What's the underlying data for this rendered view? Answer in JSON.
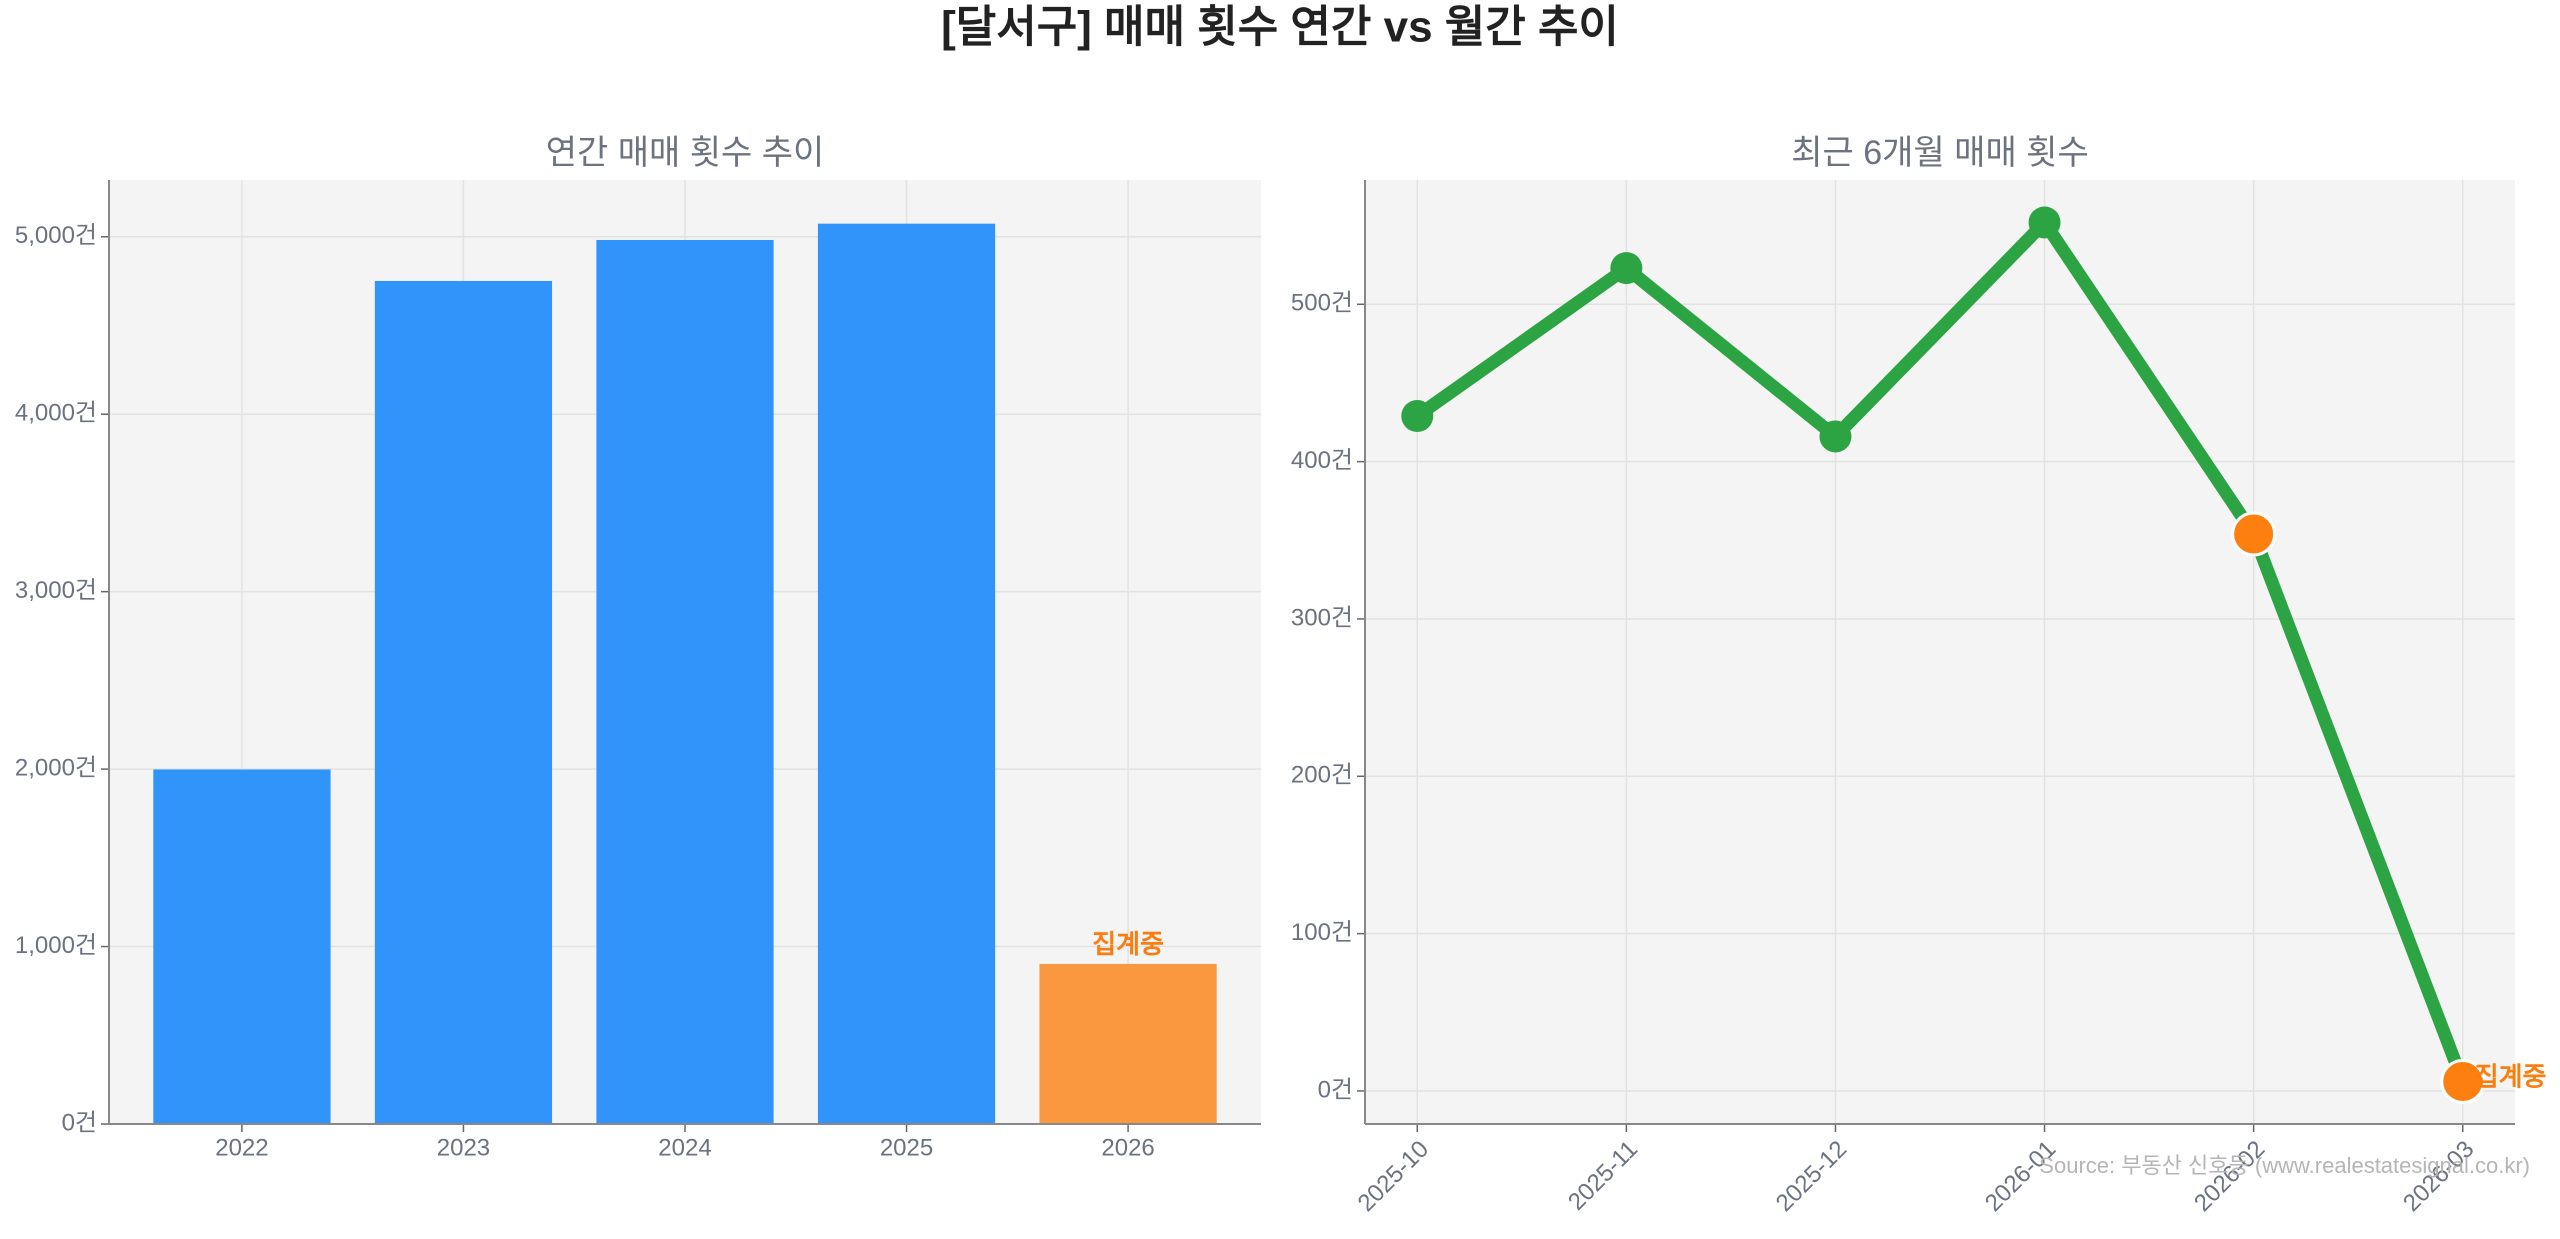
{
  "title": "[달서구] 매매 횟수 연간 vs 월간 추이",
  "source": "Source: 부동산 신호등 (www.realestatesignal.co.kr)",
  "chart_data": [
    {
      "type": "bar",
      "title": "연간 매매 횟수 추이",
      "categories": [
        "2022",
        "2023",
        "2024",
        "2025",
        "2026"
      ],
      "values": [
        1998,
        4751,
        4982,
        5074,
        902
      ],
      "colors": [
        "#3194fb",
        "#3194fb",
        "#3194fb",
        "#3194fb",
        "#fa983f"
      ],
      "ylim": [
        0,
        5320
      ],
      "yticks": [
        {
          "value": 0,
          "label": "0건"
        },
        {
          "value": 1000,
          "label": "1,000건"
        },
        {
          "value": 2000,
          "label": "2,000건"
        },
        {
          "value": 3000,
          "label": "3,000건"
        },
        {
          "value": 4000,
          "label": "4,000건"
        },
        {
          "value": 5000,
          "label": "5,000건"
        }
      ],
      "grid": true,
      "annotations": [
        {
          "text": "집계중",
          "category": "2026",
          "color": "#fa7d0f"
        }
      ]
    },
    {
      "type": "line",
      "title": "최근 6개월 매매 횟수",
      "categories": [
        "2025-10",
        "2025-11",
        "2025-12",
        "2026-01",
        "2026-02",
        "2026-03"
      ],
      "series": [
        {
          "color": "#2ca444",
          "values": [
            429,
            523,
            416,
            552,
            354,
            6
          ],
          "marker_colors": [
            "#2ca444",
            "#2ca444",
            "#2ca444",
            "#2ca444",
            "#fd7f10",
            "#fd7f10"
          ]
        }
      ],
      "ylim": [
        -21,
        579
      ],
      "yticks": [
        {
          "value": 0,
          "label": "0건"
        },
        {
          "value": 100,
          "label": "100건"
        },
        {
          "value": 200,
          "label": "200건"
        },
        {
          "value": 300,
          "label": "300건"
        },
        {
          "value": 400,
          "label": "400건"
        },
        {
          "value": 500,
          "label": "500건"
        }
      ],
      "grid": true,
      "annotations": [
        {
          "text": "집계중",
          "category": "2026-03",
          "color": "#fa7d0f"
        }
      ]
    }
  ]
}
